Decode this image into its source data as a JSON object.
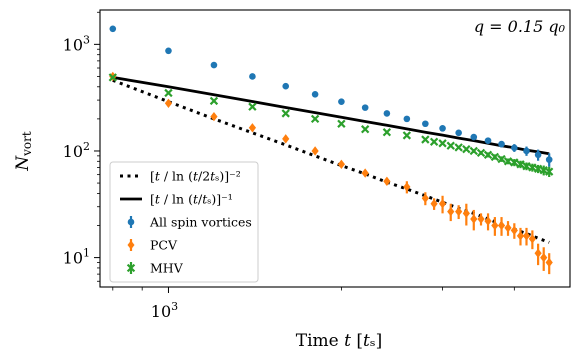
{
  "chart_data": {
    "type": "scatter",
    "xlabel": "Time t [t_s]",
    "xlabel_display": "Time 𝑡 [𝑡ₛ]",
    "ylabel": "N_vort",
    "annotation": "q = 0.15 q_0",
    "annotation_display": "𝑞 = 0.15 𝑞₀",
    "x_scale": "log",
    "y_scale": "log",
    "xlim": [
      760,
      5000
    ],
    "ylim": [
      5.3,
      2100
    ],
    "x_ticks": [
      {
        "value": 1000,
        "label": "10^3"
      }
    ],
    "y_ticks": [
      {
        "value": 10,
        "label": "10^1"
      },
      {
        "value": 100,
        "label": "10^2"
      },
      {
        "value": 1000,
        "label": "10^3"
      }
    ],
    "grid": false,
    "legend_position": "lower-left",
    "legend": [
      {
        "key": "fit2",
        "label": "[t / ln (t/2t_s)]^-2",
        "display": "[𝑡 / ln (𝑡/2𝑡ₛ)]⁻²"
      },
      {
        "key": "fit1",
        "label": "[t / ln (t/t_s)]^-1",
        "display": "[𝑡 / ln (𝑡/𝑡ₛ)]⁻¹"
      },
      {
        "key": "all",
        "label": "All spin vortices"
      },
      {
        "key": "pcv",
        "label": "PCV"
      },
      {
        "key": "mhv",
        "label": "MHV"
      }
    ],
    "series": [
      {
        "key": "all",
        "name": "All spin vortices",
        "marker": "circle",
        "color": "#1f77b4",
        "x": [
          800,
          1000,
          1200,
          1400,
          1600,
          1800,
          2000,
          2200,
          2400,
          2600,
          2800,
          3000,
          3200,
          3400,
          3600,
          3800,
          4000,
          4200,
          4400,
          4600
        ],
        "y": [
          1400,
          870,
          640,
          500,
          405,
          340,
          290,
          255,
          225,
          200,
          180,
          163,
          148,
          135,
          125,
          116,
          107,
          100,
          92,
          83
        ],
        "err": [
          0,
          0,
          0,
          0,
          0,
          0,
          0,
          0,
          0,
          0,
          0,
          4,
          5,
          6,
          7,
          8,
          9,
          10,
          11,
          12
        ]
      },
      {
        "key": "pcv",
        "name": "PCV",
        "marker": "diamond",
        "color": "#ff7f0e",
        "x": [
          800,
          1000,
          1200,
          1400,
          1600,
          1800,
          2000,
          2200,
          2400,
          2600,
          2800,
          2900,
          3000,
          3100,
          3200,
          3300,
          3400,
          3500,
          3600,
          3700,
          3800,
          3900,
          4000,
          4100,
          4200,
          4300,
          4400,
          4500,
          4600
        ],
        "y": [
          500,
          280,
          210,
          165,
          130,
          100,
          75,
          62,
          52,
          46,
          36,
          32,
          32,
          27,
          27,
          26,
          23,
          23,
          22,
          20,
          20,
          19,
          18,
          16,
          16,
          15,
          11,
          10,
          9
        ],
        "err": [
          0,
          0,
          0,
          0,
          0,
          3,
          3,
          4,
          4,
          6,
          5,
          4,
          6,
          5,
          4,
          6,
          5,
          3,
          4,
          4,
          4,
          3,
          3,
          3,
          3,
          3,
          2.5,
          2.5,
          2
        ]
      },
      {
        "key": "mhv",
        "name": "MHV",
        "marker": "x",
        "color": "#2ca02c",
        "x": [
          800,
          1000,
          1200,
          1400,
          1600,
          1800,
          2000,
          2200,
          2400,
          2600,
          2800,
          2900,
          3000,
          3100,
          3200,
          3300,
          3400,
          3500,
          3600,
          3700,
          3800,
          3900,
          4000,
          4100,
          4200,
          4300,
          4400,
          4500,
          4600
        ],
        "y": [
          490,
          350,
          295,
          260,
          225,
          200,
          180,
          160,
          150,
          140,
          128,
          122,
          118,
          112,
          108,
          104,
          100,
          96,
          92,
          88,
          84,
          80,
          78,
          75,
          72,
          70,
          68,
          66,
          64
        ],
        "err": [
          0,
          0,
          0,
          0,
          0,
          0,
          0,
          0,
          0,
          0,
          2,
          2,
          3,
          3,
          3,
          4,
          4,
          4,
          5,
          5,
          5,
          5,
          6,
          6,
          6,
          6,
          6,
          7,
          7
        ]
      },
      {
        "key": "fit1",
        "name": "[t / ln (t/t_s)]^-1",
        "style": "solid",
        "color": "#000000",
        "x": [
          800,
          1000,
          1200,
          1400,
          1600,
          1800,
          2000,
          2200,
          2400,
          2600,
          2800,
          3000,
          3200,
          3400,
          3600,
          3800,
          4000,
          4200,
          4400,
          4600
        ],
        "y": [
          490,
          400,
          337,
          291,
          256,
          229,
          207,
          189,
          174,
          161,
          150,
          141,
          132,
          125,
          118,
          112,
          107,
          102,
          98,
          94
        ]
      },
      {
        "key": "fit2",
        "name": "[t / ln (t/2t_s)]^-2",
        "style": "dotted",
        "color": "#000000",
        "x": [
          800,
          1000,
          1200,
          1400,
          1600,
          1800,
          2000,
          2200,
          2400,
          2600,
          2800,
          3000,
          3200,
          3400,
          3600,
          3800,
          4000,
          4200,
          4400,
          4600
        ],
        "y": [
          460,
          290,
          200,
          148,
          114,
          90,
          73,
          61,
          51,
          44,
          38,
          33,
          29,
          26,
          23,
          20.5,
          18.5,
          16.8,
          15.2,
          13.9
        ]
      }
    ]
  }
}
